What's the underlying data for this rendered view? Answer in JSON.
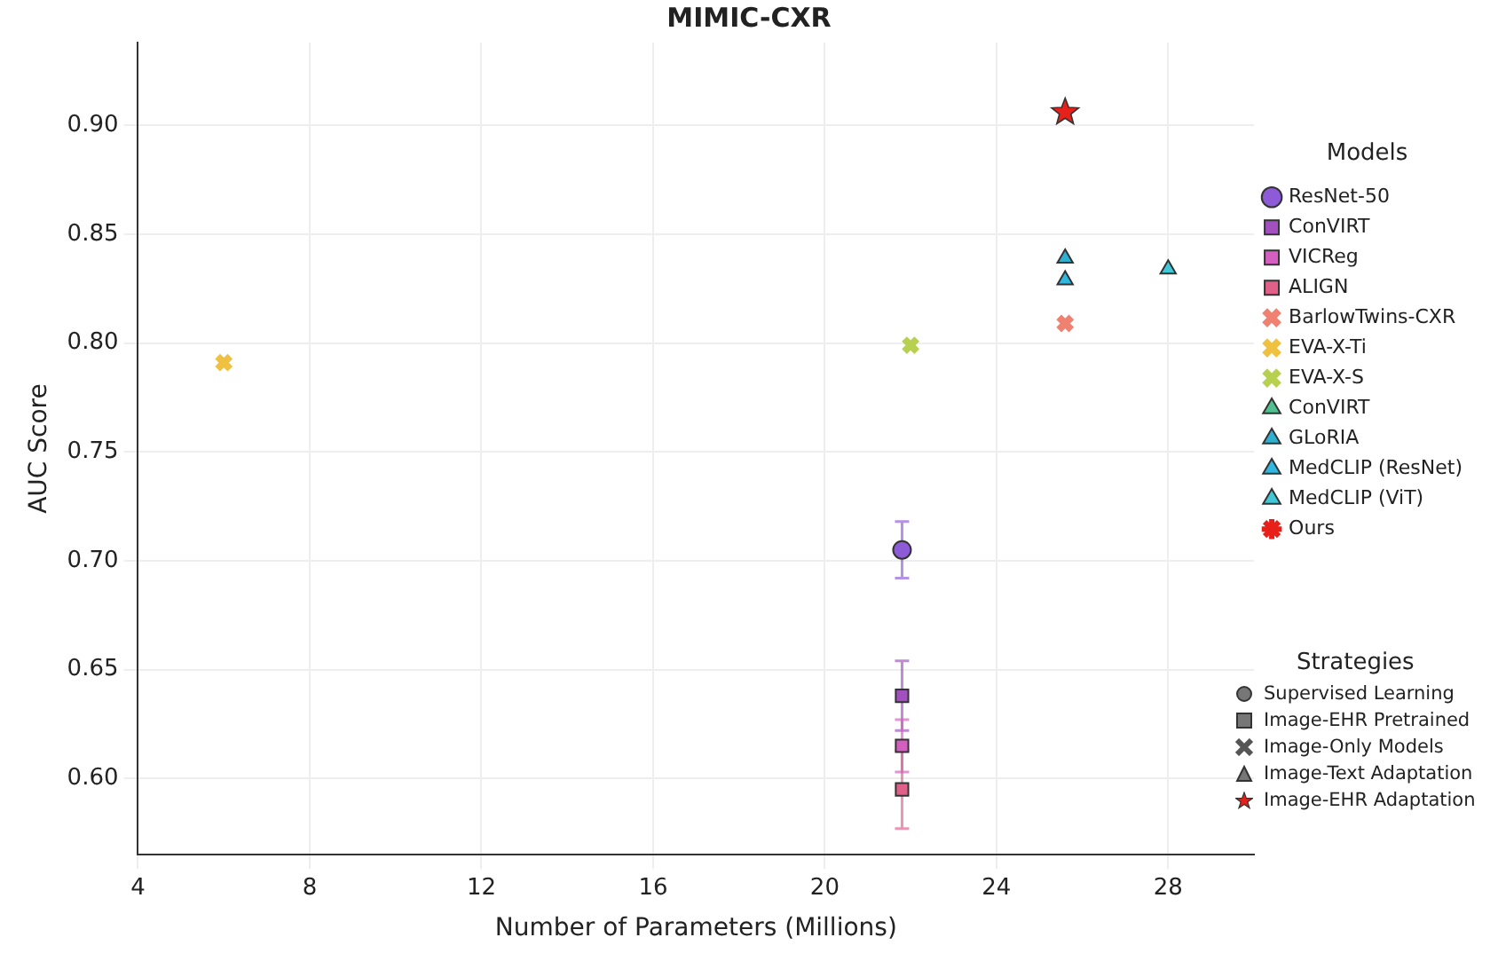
{
  "chart_data": {
    "type": "scatter",
    "title": "MIMIC-CXR",
    "xlabel": "Number of Parameters (Millions)",
    "ylabel": "AUC Score",
    "legend_title": "Models",
    "legend": "right",
    "xlim": [
      4,
      30
    ],
    "xticks": [
      4,
      8,
      12,
      16,
      20,
      24,
      28
    ],
    "ylim": [
      0.565,
      0.938
    ],
    "yticks": [
      {
        "value": 0.6,
        "label": "0.60"
      },
      0.65,
      {
        "value": 0.7,
        "label": "0.70"
      },
      0.75,
      {
        "value": 0.8,
        "label": "0.80"
      },
      0.85,
      {
        "value": 0.9,
        "label": "0.90"
      }
    ],
    "grid": true,
    "annotations": [
      "Strategies",
      "Supervised Learning",
      "Image-EHR Pretrained",
      "Image-Only Models",
      "Image-Text Adaptation",
      "Image-EHR Adaptation"
    ],
    "series": [
      {
        "name": "ResNet-50",
        "color": "#8e5bd8",
        "marker": "circle",
        "x": [
          21.8
        ],
        "values": [
          0.705
        ],
        "errors": [
          0.013
        ]
      },
      {
        "name": "ConVIRT",
        "color": "#a24fc0",
        "marker": "square",
        "x": [
          21.8
        ],
        "values": [
          0.638
        ],
        "errors": [
          0.016
        ]
      },
      {
        "name": "VICReg",
        "color": "#d45fc0",
        "marker": "square",
        "x": [
          21.8
        ],
        "values": [
          0.615
        ],
        "errors": [
          0.012
        ]
      },
      {
        "name": "ALIGN",
        "color": "#e0608a",
        "marker": "square",
        "x": [
          21.8
        ],
        "values": [
          0.595
        ],
        "errors": [
          0.018
        ]
      },
      {
        "name": "BarlowTwins-CXR",
        "color": "#f08070",
        "marker": "cross",
        "x": [
          25.6
        ],
        "values": [
          0.809
        ]
      },
      {
        "name": "EVA-X-Ti",
        "color": "#f0c040",
        "marker": "cross",
        "x": [
          6
        ],
        "values": [
          0.791
        ]
      },
      {
        "name": "EVA-X-S",
        "color": "#b8d050",
        "marker": "cross",
        "x": [
          22
        ],
        "values": [
          0.799
        ]
      },
      {
        "name": "ConVIRT",
        "color": "#50c090",
        "marker": "triangle",
        "x": [
          null
        ],
        "values": [
          null
        ]
      },
      {
        "name": "GLoRIA",
        "color": "#30b0d0",
        "marker": "triangle",
        "x": [
          25.6
        ],
        "values": [
          0.839
        ]
      },
      {
        "name": "MedCLIP (ResNet)",
        "color": "#30b8e0",
        "marker": "triangle",
        "x": [
          25.6
        ],
        "values": [
          0.829
        ]
      },
      {
        "name": "MedCLIP (ViT)",
        "color": "#40c8d8",
        "marker": "triangle",
        "x": [
          28
        ],
        "values": [
          0.834
        ]
      },
      {
        "name": "Ours",
        "color": "#e8201a",
        "marker": "star",
        "x": [
          25.6
        ],
        "values": [
          0.906
        ]
      }
    ]
  }
}
